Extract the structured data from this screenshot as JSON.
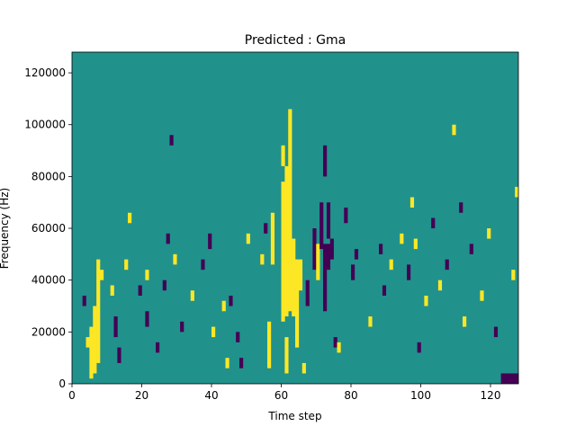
{
  "chart_data": {
    "type": "heatmap",
    "title": "Predicted : Gma",
    "xlabel": "Time step",
    "ylabel": "Frequency (Hz)",
    "xlim": [
      0,
      128
    ],
    "ylim": [
      0,
      128000
    ],
    "x_ticks": [
      0,
      20,
      40,
      60,
      80,
      100,
      120
    ],
    "y_ticks": [
      0,
      20000,
      40000,
      60000,
      80000,
      100000,
      120000
    ],
    "x_tick_labels": [
      "0",
      "20",
      "40",
      "60",
      "80",
      "100",
      "120"
    ],
    "y_tick_labels": [
      "0",
      "20000",
      "40000",
      "60000",
      "80000",
      "100000",
      "120000"
    ],
    "grid": false,
    "colormap": "viridis",
    "values_legend": {
      "-1": "#440154",
      "0": "#21918c",
      "1": "#fde725"
    },
    "background_value": 0,
    "time_steps": 128,
    "frequency_bins": 64,
    "bin_height_hz": 2000,
    "cells": [
      {
        "t": 5,
        "f0": 2000,
        "f1": 22000,
        "value": 1
      },
      {
        "t": 6,
        "f0": 4000,
        "f1": 30000,
        "value": 1
      },
      {
        "t": 7,
        "f0": 8000,
        "f1": 48000,
        "value": 1
      },
      {
        "t": 3,
        "f0": 30000,
        "f1": 34000,
        "value": -1
      },
      {
        "t": 4,
        "f0": 14000,
        "f1": 18000,
        "value": 1
      },
      {
        "t": 8,
        "f0": 40000,
        "f1": 44000,
        "value": 1
      },
      {
        "t": 12,
        "f0": 18000,
        "f1": 26000,
        "value": -1
      },
      {
        "t": 11,
        "f0": 34000,
        "f1": 38000,
        "value": 1
      },
      {
        "t": 13,
        "f0": 8000,
        "f1": 14000,
        "value": -1
      },
      {
        "t": 15,
        "f0": 44000,
        "f1": 48000,
        "value": 1
      },
      {
        "t": 16,
        "f0": 62000,
        "f1": 66000,
        "value": 1
      },
      {
        "t": 19,
        "f0": 34000,
        "f1": 38000,
        "value": -1
      },
      {
        "t": 21,
        "f0": 22000,
        "f1": 28000,
        "value": -1
      },
      {
        "t": 21,
        "f0": 40000,
        "f1": 44000,
        "value": 1
      },
      {
        "t": 24,
        "f0": 12000,
        "f1": 16000,
        "value": -1
      },
      {
        "t": 26,
        "f0": 36000,
        "f1": 40000,
        "value": -1
      },
      {
        "t": 27,
        "f0": 54000,
        "f1": 58000,
        "value": -1
      },
      {
        "t": 28,
        "f0": 92000,
        "f1": 96000,
        "value": -1
      },
      {
        "t": 29,
        "f0": 46000,
        "f1": 50000,
        "value": 1
      },
      {
        "t": 31,
        "f0": 20000,
        "f1": 24000,
        "value": -1
      },
      {
        "t": 34,
        "f0": 32000,
        "f1": 36000,
        "value": 1
      },
      {
        "t": 37,
        "f0": 44000,
        "f1": 48000,
        "value": -1
      },
      {
        "t": 39,
        "f0": 52000,
        "f1": 58000,
        "value": -1
      },
      {
        "t": 40,
        "f0": 18000,
        "f1": 22000,
        "value": 1
      },
      {
        "t": 43,
        "f0": 28000,
        "f1": 32000,
        "value": 1
      },
      {
        "t": 44,
        "f0": 6000,
        "f1": 10000,
        "value": 1
      },
      {
        "t": 45,
        "f0": 30000,
        "f1": 34000,
        "value": -1
      },
      {
        "t": 47,
        "f0": 16000,
        "f1": 20000,
        "value": -1
      },
      {
        "t": 48,
        "f0": 6000,
        "f1": 10000,
        "value": -1
      },
      {
        "t": 50,
        "f0": 54000,
        "f1": 58000,
        "value": 1
      },
      {
        "t": 54,
        "f0": 46000,
        "f1": 50000,
        "value": 1
      },
      {
        "t": 55,
        "f0": 58000,
        "f1": 62000,
        "value": -1
      },
      {
        "t": 56,
        "f0": 6000,
        "f1": 24000,
        "value": 1
      },
      {
        "t": 57,
        "f0": 46000,
        "f1": 66000,
        "value": 1
      },
      {
        "t": 60,
        "f0": 24000,
        "f1": 78000,
        "value": 1
      },
      {
        "t": 60,
        "f0": 84000,
        "f1": 92000,
        "value": 1
      },
      {
        "t": 61,
        "f0": 4000,
        "f1": 18000,
        "value": 1
      },
      {
        "t": 61,
        "f0": 26000,
        "f1": 84000,
        "value": 1
      },
      {
        "t": 62,
        "f0": 28000,
        "f1": 106000,
        "value": 1
      },
      {
        "t": 63,
        "f0": 26000,
        "f1": 56000,
        "value": 1
      },
      {
        "t": 64,
        "f0": 14000,
        "f1": 48000,
        "value": 1
      },
      {
        "t": 65,
        "f0": 36000,
        "f1": 48000,
        "value": 1
      },
      {
        "t": 66,
        "f0": 4000,
        "f1": 8000,
        "value": 1
      },
      {
        "t": 67,
        "f0": 30000,
        "f1": 40000,
        "value": -1
      },
      {
        "t": 69,
        "f0": 44000,
        "f1": 60000,
        "value": -1
      },
      {
        "t": 70,
        "f0": 40000,
        "f1": 54000,
        "value": 1
      },
      {
        "t": 71,
        "f0": 52000,
        "f1": 70000,
        "value": -1
      },
      {
        "t": 72,
        "f0": 28000,
        "f1": 54000,
        "value": -1
      },
      {
        "t": 72,
        "f0": 80000,
        "f1": 92000,
        "value": -1
      },
      {
        "t": 73,
        "f0": 56000,
        "f1": 70000,
        "value": -1
      },
      {
        "t": 73,
        "f0": 44000,
        "f1": 54000,
        "value": -1
      },
      {
        "t": 74,
        "f0": 48000,
        "f1": 56000,
        "value": -1
      },
      {
        "t": 75,
        "f0": 14000,
        "f1": 18000,
        "value": -1
      },
      {
        "t": 76,
        "f0": 12000,
        "f1": 16000,
        "value": 1
      },
      {
        "t": 78,
        "f0": 62000,
        "f1": 68000,
        "value": -1
      },
      {
        "t": 80,
        "f0": 40000,
        "f1": 46000,
        "value": -1
      },
      {
        "t": 81,
        "f0": 48000,
        "f1": 52000,
        "value": -1
      },
      {
        "t": 85,
        "f0": 22000,
        "f1": 26000,
        "value": 1
      },
      {
        "t": 88,
        "f0": 50000,
        "f1": 54000,
        "value": -1
      },
      {
        "t": 89,
        "f0": 34000,
        "f1": 38000,
        "value": -1
      },
      {
        "t": 91,
        "f0": 44000,
        "f1": 48000,
        "value": 1
      },
      {
        "t": 94,
        "f0": 54000,
        "f1": 58000,
        "value": 1
      },
      {
        "t": 96,
        "f0": 40000,
        "f1": 46000,
        "value": -1
      },
      {
        "t": 97,
        "f0": 68000,
        "f1": 72000,
        "value": 1
      },
      {
        "t": 98,
        "f0": 52000,
        "f1": 56000,
        "value": 1
      },
      {
        "t": 99,
        "f0": 12000,
        "f1": 16000,
        "value": -1
      },
      {
        "t": 101,
        "f0": 30000,
        "f1": 34000,
        "value": 1
      },
      {
        "t": 103,
        "f0": 60000,
        "f1": 64000,
        "value": -1
      },
      {
        "t": 105,
        "f0": 36000,
        "f1": 40000,
        "value": 1
      },
      {
        "t": 107,
        "f0": 44000,
        "f1": 48000,
        "value": -1
      },
      {
        "t": 109,
        "f0": 96000,
        "f1": 100000,
        "value": 1
      },
      {
        "t": 111,
        "f0": 66000,
        "f1": 70000,
        "value": -1
      },
      {
        "t": 112,
        "f0": 22000,
        "f1": 26000,
        "value": 1
      },
      {
        "t": 114,
        "f0": 50000,
        "f1": 54000,
        "value": -1
      },
      {
        "t": 117,
        "f0": 32000,
        "f1": 36000,
        "value": 1
      },
      {
        "t": 119,
        "f0": 56000,
        "f1": 60000,
        "value": 1
      },
      {
        "t": 121,
        "f0": 18000,
        "f1": 22000,
        "value": -1
      },
      {
        "t": 123,
        "f0": 0,
        "f1": 4000,
        "value": -1
      },
      {
        "t": 124,
        "f0": 0,
        "f1": 4000,
        "value": -1
      },
      {
        "t": 125,
        "f0": 0,
        "f1": 4000,
        "value": -1
      },
      {
        "t": 126,
        "f0": 0,
        "f1": 4000,
        "value": -1
      },
      {
        "t": 127,
        "f0": 0,
        "f1": 4000,
        "value": -1
      },
      {
        "t": 126,
        "f0": 40000,
        "f1": 44000,
        "value": 1
      },
      {
        "t": 127,
        "f0": 72000,
        "f1": 76000,
        "value": 1
      }
    ]
  }
}
